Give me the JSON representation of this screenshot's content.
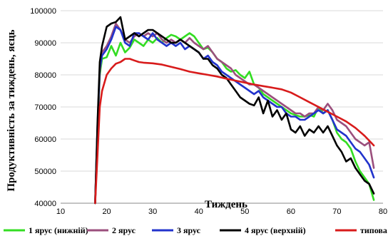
{
  "chart_data": {
    "type": "line",
    "xlabel": "Тиждень",
    "ylabel": "Продуктивність за тиждень, яєць",
    "xlim": [
      10,
      80
    ],
    "ylim": [
      40000,
      100000
    ],
    "x_ticks": [
      10,
      20,
      30,
      40,
      50,
      60,
      70,
      80
    ],
    "y_ticks": [
      40000,
      50000,
      60000,
      70000,
      80000,
      90000,
      100000
    ],
    "x_tick_labels": [
      "10",
      "20",
      "30",
      "40",
      "50",
      "60",
      "70",
      "80"
    ],
    "y_tick_labels": [
      "40000",
      "50000",
      "60000",
      "70000",
      "80000",
      "90000",
      "100000"
    ],
    "grid": "horizontal",
    "legend_position": "bottom",
    "series": [
      {
        "name": "1 ярус (нижній)",
        "color": "#33dd22",
        "points": [
          [
            17.5,
            40000
          ],
          [
            18,
            62000
          ],
          [
            18.5,
            80000
          ],
          [
            19,
            85000
          ],
          [
            20,
            85500
          ],
          [
            21,
            89000
          ],
          [
            22,
            86000
          ],
          [
            23,
            90000
          ],
          [
            24,
            87000
          ],
          [
            25,
            88500
          ],
          [
            26,
            91000
          ],
          [
            27,
            90000
          ],
          [
            28,
            89000
          ],
          [
            29,
            91000
          ],
          [
            30,
            90000
          ],
          [
            31,
            91500
          ],
          [
            32,
            90000
          ],
          [
            33,
            91500
          ],
          [
            34,
            92500
          ],
          [
            35,
            92000
          ],
          [
            36,
            91000
          ],
          [
            37,
            92000
          ],
          [
            38,
            93000
          ],
          [
            39,
            92000
          ],
          [
            40,
            90000
          ],
          [
            41,
            88000
          ],
          [
            42,
            88500
          ],
          [
            43,
            87000
          ],
          [
            44,
            85000
          ],
          [
            45,
            84000
          ],
          [
            46,
            82000
          ],
          [
            47,
            81000
          ],
          [
            48,
            81500
          ],
          [
            49,
            80000
          ],
          [
            50,
            79000
          ],
          [
            51,
            81000
          ],
          [
            52,
            77000
          ],
          [
            53,
            76000
          ],
          [
            54,
            74000
          ],
          [
            55,
            73000
          ],
          [
            56,
            72000
          ],
          [
            57,
            71000
          ],
          [
            58,
            70000
          ],
          [
            59,
            69000
          ],
          [
            60,
            68000
          ],
          [
            61,
            67500
          ],
          [
            62,
            67000
          ],
          [
            63,
            67000
          ],
          [
            64,
            67500
          ],
          [
            65,
            67000
          ],
          [
            66,
            70000
          ],
          [
            67,
            68000
          ],
          [
            68,
            69000
          ],
          [
            69,
            66000
          ],
          [
            70,
            62000
          ],
          [
            71,
            60000
          ],
          [
            72,
            59000
          ],
          [
            73,
            57000
          ],
          [
            74,
            53000
          ],
          [
            75,
            50000
          ],
          [
            76,
            48000
          ],
          [
            77,
            46000
          ],
          [
            78,
            41000
          ]
        ]
      },
      {
        "name": "2 ярус",
        "color": "#9b4f7d",
        "points": [
          [
            17.5,
            40000
          ],
          [
            18,
            63000
          ],
          [
            18.5,
            81000
          ],
          [
            19,
            87000
          ],
          [
            20,
            89000
          ],
          [
            21,
            92000
          ],
          [
            22,
            96000
          ],
          [
            23,
            94000
          ],
          [
            24,
            91000
          ],
          [
            25,
            90000
          ],
          [
            26,
            92000
          ],
          [
            27,
            93000
          ],
          [
            28,
            92000
          ],
          [
            29,
            93000
          ],
          [
            30,
            92000
          ],
          [
            31,
            93000
          ],
          [
            32,
            91000
          ],
          [
            33,
            90000
          ],
          [
            34,
            91000
          ],
          [
            35,
            90000
          ],
          [
            36,
            91000
          ],
          [
            37,
            90000
          ],
          [
            38,
            91500
          ],
          [
            39,
            90000
          ],
          [
            40,
            89000
          ],
          [
            41,
            88000
          ],
          [
            42,
            89000
          ],
          [
            43,
            87000
          ],
          [
            44,
            85000
          ],
          [
            45,
            84000
          ],
          [
            46,
            83000
          ],
          [
            47,
            82000
          ],
          [
            48,
            80000
          ],
          [
            49,
            79000
          ],
          [
            50,
            78000
          ],
          [
            51,
            77000
          ],
          [
            52,
            77000
          ],
          [
            53,
            76000
          ],
          [
            54,
            75000
          ],
          [
            55,
            74000
          ],
          [
            56,
            73000
          ],
          [
            57,
            72000
          ],
          [
            58,
            71000
          ],
          [
            59,
            70000
          ],
          [
            60,
            69000
          ],
          [
            61,
            68000
          ],
          [
            62,
            68000
          ],
          [
            63,
            67000
          ],
          [
            64,
            68000
          ],
          [
            65,
            68000
          ],
          [
            66,
            70000
          ],
          [
            67,
            69000
          ],
          [
            68,
            71000
          ],
          [
            69,
            69000
          ],
          [
            70,
            66000
          ],
          [
            71,
            65000
          ],
          [
            72,
            64000
          ],
          [
            73,
            62000
          ],
          [
            74,
            60000
          ],
          [
            75,
            59000
          ],
          [
            76,
            58000
          ],
          [
            77,
            59000
          ],
          [
            78,
            51000
          ]
        ]
      },
      {
        "name": "3 ярус",
        "color": "#2233cc",
        "points": [
          [
            17.5,
            40000
          ],
          [
            18,
            64000
          ],
          [
            18.5,
            82000
          ],
          [
            19,
            86000
          ],
          [
            20,
            88000
          ],
          [
            21,
            91000
          ],
          [
            22,
            95000
          ],
          [
            23,
            94000
          ],
          [
            24,
            90000
          ],
          [
            25,
            89000
          ],
          [
            26,
            93000
          ],
          [
            27,
            93000
          ],
          [
            28,
            92000
          ],
          [
            29,
            91000
          ],
          [
            30,
            93000
          ],
          [
            31,
            91000
          ],
          [
            32,
            90000
          ],
          [
            33,
            89000
          ],
          [
            34,
            90000
          ],
          [
            35,
            89000
          ],
          [
            36,
            90000
          ],
          [
            37,
            88000
          ],
          [
            38,
            89000
          ],
          [
            39,
            88000
          ],
          [
            40,
            87000
          ],
          [
            41,
            85000
          ],
          [
            42,
            86000
          ],
          [
            43,
            84000
          ],
          [
            44,
            83000
          ],
          [
            45,
            81000
          ],
          [
            46,
            80000
          ],
          [
            47,
            79000
          ],
          [
            48,
            78000
          ],
          [
            49,
            77000
          ],
          [
            50,
            76000
          ],
          [
            51,
            75000
          ],
          [
            52,
            74000
          ],
          [
            53,
            75000
          ],
          [
            54,
            73000
          ],
          [
            55,
            72000
          ],
          [
            56,
            71000
          ],
          [
            57,
            70000
          ],
          [
            58,
            70000
          ],
          [
            59,
            68000
          ],
          [
            60,
            67000
          ],
          [
            61,
            67000
          ],
          [
            62,
            66000
          ],
          [
            63,
            66000
          ],
          [
            64,
            67000
          ],
          [
            65,
            68000
          ],
          [
            66,
            69000
          ],
          [
            67,
            68000
          ],
          [
            68,
            69000
          ],
          [
            69,
            66000
          ],
          [
            70,
            63000
          ],
          [
            71,
            62000
          ],
          [
            72,
            61000
          ],
          [
            73,
            59000
          ],
          [
            74,
            57000
          ],
          [
            75,
            56000
          ],
          [
            76,
            54000
          ],
          [
            77,
            52000
          ],
          [
            78,
            48000
          ]
        ]
      },
      {
        "name": "4 ярус (верхній)",
        "color": "#000000",
        "points": [
          [
            17.5,
            40000
          ],
          [
            18,
            65000
          ],
          [
            18.5,
            84000
          ],
          [
            19,
            89000
          ],
          [
            20,
            95000
          ],
          [
            21,
            96000
          ],
          [
            22,
            96500
          ],
          [
            23,
            98000
          ],
          [
            24,
            91000
          ],
          [
            25,
            92000
          ],
          [
            26,
            93000
          ],
          [
            27,
            92000
          ],
          [
            28,
            93000
          ],
          [
            29,
            94000
          ],
          [
            30,
            94000
          ],
          [
            31,
            93000
          ],
          [
            32,
            92000
          ],
          [
            33,
            91000
          ],
          [
            34,
            90000
          ],
          [
            35,
            90000
          ],
          [
            36,
            91000
          ],
          [
            37,
            90000
          ],
          [
            38,
            89000
          ],
          [
            39,
            88000
          ],
          [
            40,
            87000
          ],
          [
            41,
            85000
          ],
          [
            42,
            85000
          ],
          [
            43,
            83000
          ],
          [
            44,
            82000
          ],
          [
            45,
            80000
          ],
          [
            46,
            79000
          ],
          [
            47,
            77000
          ],
          [
            48,
            75000
          ],
          [
            49,
            73000
          ],
          [
            50,
            72000
          ],
          [
            51,
            71000
          ],
          [
            52,
            70500
          ],
          [
            53,
            73000
          ],
          [
            54,
            68000
          ],
          [
            55,
            72000
          ],
          [
            56,
            67000
          ],
          [
            57,
            69000
          ],
          [
            58,
            66000
          ],
          [
            59,
            68000
          ],
          [
            60,
            63000
          ],
          [
            61,
            62000
          ],
          [
            62,
            64000
          ],
          [
            63,
            61000
          ],
          [
            64,
            63000
          ],
          [
            65,
            62000
          ],
          [
            66,
            64000
          ],
          [
            67,
            62000
          ],
          [
            68,
            64000
          ],
          [
            69,
            61000
          ],
          [
            70,
            58000
          ],
          [
            71,
            56000
          ],
          [
            72,
            53000
          ],
          [
            73,
            54000
          ],
          [
            74,
            51000
          ],
          [
            75,
            49000
          ],
          [
            76,
            47000
          ],
          [
            77,
            46000
          ],
          [
            78,
            43000
          ]
        ]
      },
      {
        "name": "типова",
        "color": "#d81b1b",
        "points": [
          [
            17.5,
            40000
          ],
          [
            18,
            55000
          ],
          [
            18.5,
            70000
          ],
          [
            19,
            75000
          ],
          [
            20,
            80000
          ],
          [
            21,
            82000
          ],
          [
            22,
            83500
          ],
          [
            23,
            84000
          ],
          [
            24,
            85000
          ],
          [
            25,
            85000
          ],
          [
            26,
            84500
          ],
          [
            27,
            84000
          ],
          [
            28,
            83800
          ],
          [
            30,
            83600
          ],
          [
            32,
            83200
          ],
          [
            34,
            82500
          ],
          [
            36,
            81800
          ],
          [
            38,
            81000
          ],
          [
            40,
            80500
          ],
          [
            42,
            80000
          ],
          [
            44,
            79500
          ],
          [
            46,
            78800
          ],
          [
            48,
            78200
          ],
          [
            50,
            77600
          ],
          [
            52,
            77000
          ],
          [
            54,
            76500
          ],
          [
            56,
            76000
          ],
          [
            58,
            75500
          ],
          [
            60,
            74500
          ],
          [
            62,
            73000
          ],
          [
            64,
            71500
          ],
          [
            66,
            70000
          ],
          [
            68,
            68500
          ],
          [
            70,
            67000
          ],
          [
            72,
            65500
          ],
          [
            74,
            63500
          ],
          [
            76,
            61000
          ],
          [
            78,
            58000
          ]
        ]
      }
    ]
  }
}
